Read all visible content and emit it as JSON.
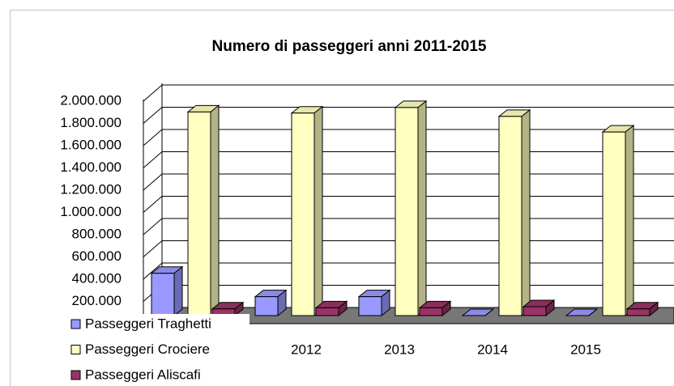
{
  "chart_data": {
    "type": "bar3d",
    "title": "Numero di passeggeri anni 2011-2015",
    "categories": [
      null,
      "2012",
      "2013",
      "2014",
      "2015"
    ],
    "series": [
      {
        "name": "Passeggeri Traghetti",
        "color": "#9999ff",
        "values": [
          380000,
          170000,
          170000,
          0,
          0
        ]
      },
      {
        "name": "Passeggeri Crociere",
        "color": "#ffffc0",
        "values": [
          1830000,
          1820000,
          1870000,
          1790000,
          1650000
        ]
      },
      {
        "name": "Passeggeri Aliscafi",
        "color": "#993366",
        "values": [
          60000,
          70000,
          70000,
          80000,
          60000
        ]
      }
    ],
    "ylim": [
      0,
      2000000
    ],
    "yticks": [
      {
        "value": 200000,
        "label": "200.000"
      },
      {
        "value": 400000,
        "label": "400.000"
      },
      {
        "value": 600000,
        "label": "600.000"
      },
      {
        "value": 800000,
        "label": "800.000"
      },
      {
        "value": 1000000,
        "label": "1.000.000"
      },
      {
        "value": 1200000,
        "label": "1.200.000"
      },
      {
        "value": 1400000,
        "label": "1.400.000"
      },
      {
        "value": 1600000,
        "label": "1.600.000"
      },
      {
        "value": 1800000,
        "label": "1.800.000"
      },
      {
        "value": 2000000,
        "label": "2.000.000"
      }
    ],
    "grid": true,
    "legend": "bottom-left"
  }
}
